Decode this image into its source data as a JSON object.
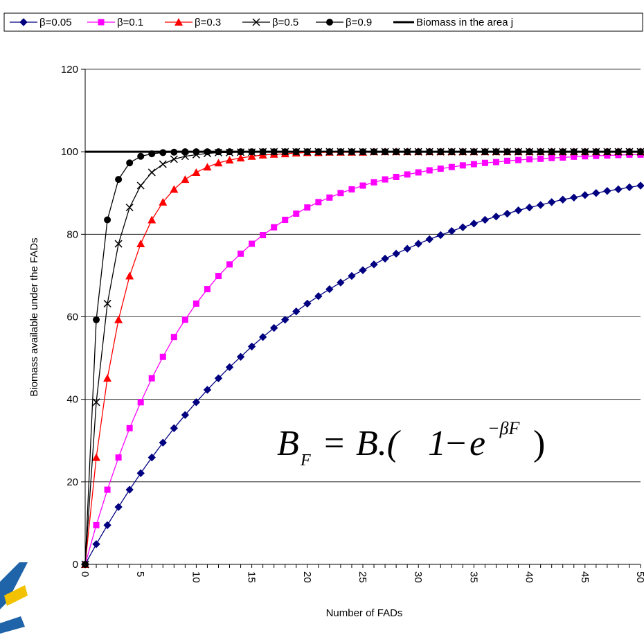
{
  "chart_data": {
    "type": "line",
    "title": "",
    "xlabel": "Number of FADs",
    "ylabel": "Biomass available under the FADs",
    "xlim": [
      0,
      50
    ],
    "ylim": [
      0,
      120
    ],
    "xticks": [
      "0",
      "5",
      "10",
      "15",
      "20",
      "25",
      "30",
      "35",
      "40",
      "45",
      "50"
    ],
    "yticks": [
      "0",
      "20",
      "40",
      "60",
      "80",
      "100",
      "120"
    ],
    "grid": "horizontal",
    "legend_position": "top",
    "x": [
      0,
      1,
      2,
      3,
      4,
      5,
      6,
      7,
      8,
      9,
      10,
      11,
      12,
      13,
      14,
      15,
      16,
      17,
      18,
      19,
      20,
      21,
      22,
      23,
      24,
      25,
      26,
      27,
      28,
      29,
      30,
      31,
      32,
      33,
      34,
      35,
      36,
      37,
      38,
      39,
      40,
      41,
      42,
      43,
      44,
      45,
      46,
      47,
      48,
      49,
      50
    ],
    "series": [
      {
        "name": "β=0.05",
        "color": "#000080",
        "marker": "diamond",
        "values": [
          0,
          4.9,
          9.5,
          13.9,
          18.1,
          22.1,
          25.9,
          29.5,
          33.0,
          36.2,
          39.3,
          42.3,
          45.1,
          47.8,
          50.3,
          52.8,
          55.1,
          57.3,
          59.3,
          61.3,
          63.2,
          65.0,
          66.7,
          68.3,
          69.9,
          71.3,
          72.7,
          74.1,
          75.3,
          76.5,
          77.7,
          78.8,
          79.8,
          80.8,
          81.7,
          82.6,
          83.5,
          84.3,
          85.0,
          85.8,
          86.5,
          87.1,
          87.8,
          88.4,
          88.9,
          89.5,
          90.0,
          90.5,
          90.9,
          91.4,
          91.8
        ]
      },
      {
        "name": "β=0.1",
        "color": "#ff00ff",
        "marker": "square",
        "values": [
          0,
          9.5,
          18.1,
          25.9,
          33.0,
          39.3,
          45.1,
          50.3,
          55.1,
          59.3,
          63.2,
          66.7,
          69.9,
          72.7,
          75.3,
          77.7,
          79.8,
          81.7,
          83.5,
          85.0,
          86.5,
          87.8,
          88.9,
          90.0,
          90.9,
          91.8,
          92.6,
          93.3,
          93.9,
          94.5,
          95.0,
          95.5,
          95.9,
          96.3,
          96.7,
          97.0,
          97.3,
          97.5,
          97.8,
          98.0,
          98.2,
          98.3,
          98.5,
          98.6,
          98.8,
          98.9,
          99.0,
          99.1,
          99.2,
          99.3,
          99.3
        ]
      },
      {
        "name": "β=0.3",
        "color": "#ff0000",
        "marker": "triangle",
        "values": [
          0,
          25.9,
          45.1,
          59.3,
          69.9,
          77.7,
          83.5,
          87.8,
          90.9,
          93.3,
          95.0,
          96.3,
          97.3,
          98.0,
          98.5,
          98.9,
          99.2,
          99.4,
          99.5,
          99.7,
          99.8,
          99.8,
          99.9,
          99.9,
          99.9,
          99.9,
          100,
          100,
          100,
          100,
          100,
          100,
          100,
          100,
          100,
          100,
          100,
          100,
          100,
          100,
          100,
          100,
          100,
          100,
          100,
          100,
          100,
          100,
          100,
          100,
          100
        ]
      },
      {
        "name": "β=0.5",
        "color": "#000000",
        "marker": "x",
        "values": [
          0,
          39.3,
          63.2,
          77.7,
          86.5,
          91.8,
          95.0,
          97.0,
          98.2,
          98.9,
          99.3,
          99.6,
          99.8,
          99.8,
          99.9,
          99.9,
          100,
          100,
          100,
          100,
          100,
          100,
          100,
          100,
          100,
          100,
          100,
          100,
          100,
          100,
          100,
          100,
          100,
          100,
          100,
          100,
          100,
          100,
          100,
          100,
          100,
          100,
          100,
          100,
          100,
          100,
          100,
          100,
          100,
          100,
          100
        ]
      },
      {
        "name": "β=0.9",
        "color": "#000000",
        "marker": "circle",
        "values": [
          0,
          59.3,
          83.5,
          93.3,
          97.3,
          98.9,
          99.5,
          99.8,
          99.9,
          100,
          100,
          100,
          100,
          100,
          100,
          100,
          100,
          100,
          100,
          100,
          100,
          100,
          100,
          100,
          100,
          100,
          100,
          100,
          100,
          100,
          100,
          100,
          100,
          100,
          100,
          100,
          100,
          100,
          100,
          100,
          100,
          100,
          100,
          100,
          100,
          100,
          100,
          100,
          100,
          100,
          100
        ]
      },
      {
        "name": "Biomass in the area j",
        "color": "#000000",
        "marker": "none",
        "values": [
          100,
          100,
          100,
          100,
          100,
          100,
          100,
          100,
          100,
          100,
          100,
          100,
          100,
          100,
          100,
          100,
          100,
          100,
          100,
          100,
          100,
          100,
          100,
          100,
          100,
          100,
          100,
          100,
          100,
          100,
          100,
          100,
          100,
          100,
          100,
          100,
          100,
          100,
          100,
          100,
          100,
          100,
          100,
          100,
          100,
          100,
          100,
          100,
          100,
          100,
          100
        ]
      }
    ],
    "annotations": [
      {
        "text": "B_F = B.(1−e^{−βF})",
        "parts": {
          "B": "B",
          "sub": "F",
          "eq": "=",
          "rhs": "B.(",
          "one": "1",
          "minus": "−",
          "e": "e",
          "exp": "−βF",
          "close": ")"
        }
      }
    ]
  }
}
